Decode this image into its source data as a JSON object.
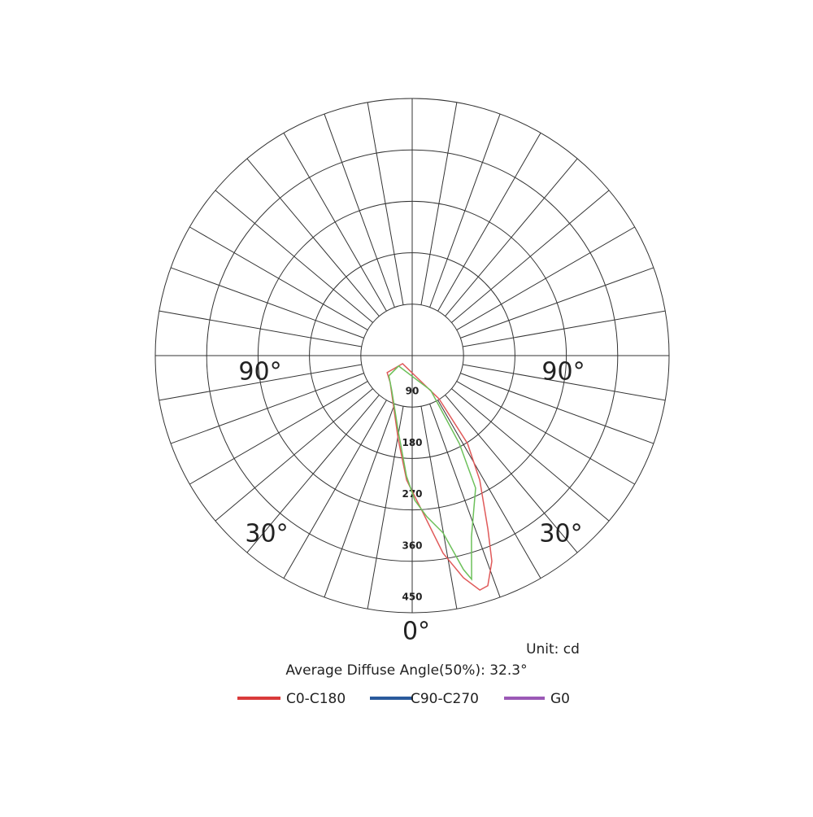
{
  "chart_data": {
    "type": "polar",
    "rlim": [
      0,
      450
    ],
    "rticks": [
      90,
      180,
      270,
      360,
      450
    ],
    "angle_ticks": [
      {
        "value": -90,
        "label": "90°"
      },
      {
        "value": 90,
        "label": "90°"
      },
      {
        "value": -30,
        "label": "30°"
      },
      {
        "value": 30,
        "label": "30°"
      },
      {
        "value": 0,
        "label": "0°"
      }
    ],
    "unit": "Unit: cd",
    "annotation": "Average Diffuse Angle(50%): 32.3°",
    "series": [
      {
        "name": "C0-C180",
        "color": "#d93a3a",
        "line_color": "#e05a5a",
        "angles": [
          31.9,
          32.2,
          28.5,
          23.6,
          21.2,
          18.2,
          16.1,
          13.0,
          8.9,
          3.9,
          -2.6,
          -9.4,
          -39.3,
          -55.9,
          -50
        ],
        "values": [
          89,
          182,
          248,
          331,
          386,
          424,
          427,
          399,
          350,
          275,
          218,
          149,
          61,
          53,
          22
        ]
      },
      {
        "name": "C90-C270",
        "color": "#2a5a9c",
        "line_color": "#6cc05a",
        "angles": [
          28.1,
          28.2,
          25.6,
          18.1,
          14.9,
          13.5,
          9.9,
          5.2,
          1.0,
          -2.7,
          -10.4,
          -30.2,
          -49.2,
          -52.6
        ],
        "values": [
          69,
          175,
          257,
          334,
          405,
          385,
          315,
          283,
          253,
          211,
          135,
          71,
          54,
          30
        ]
      },
      {
        "name": "G0",
        "color": "#9b59b6"
      }
    ]
  }
}
